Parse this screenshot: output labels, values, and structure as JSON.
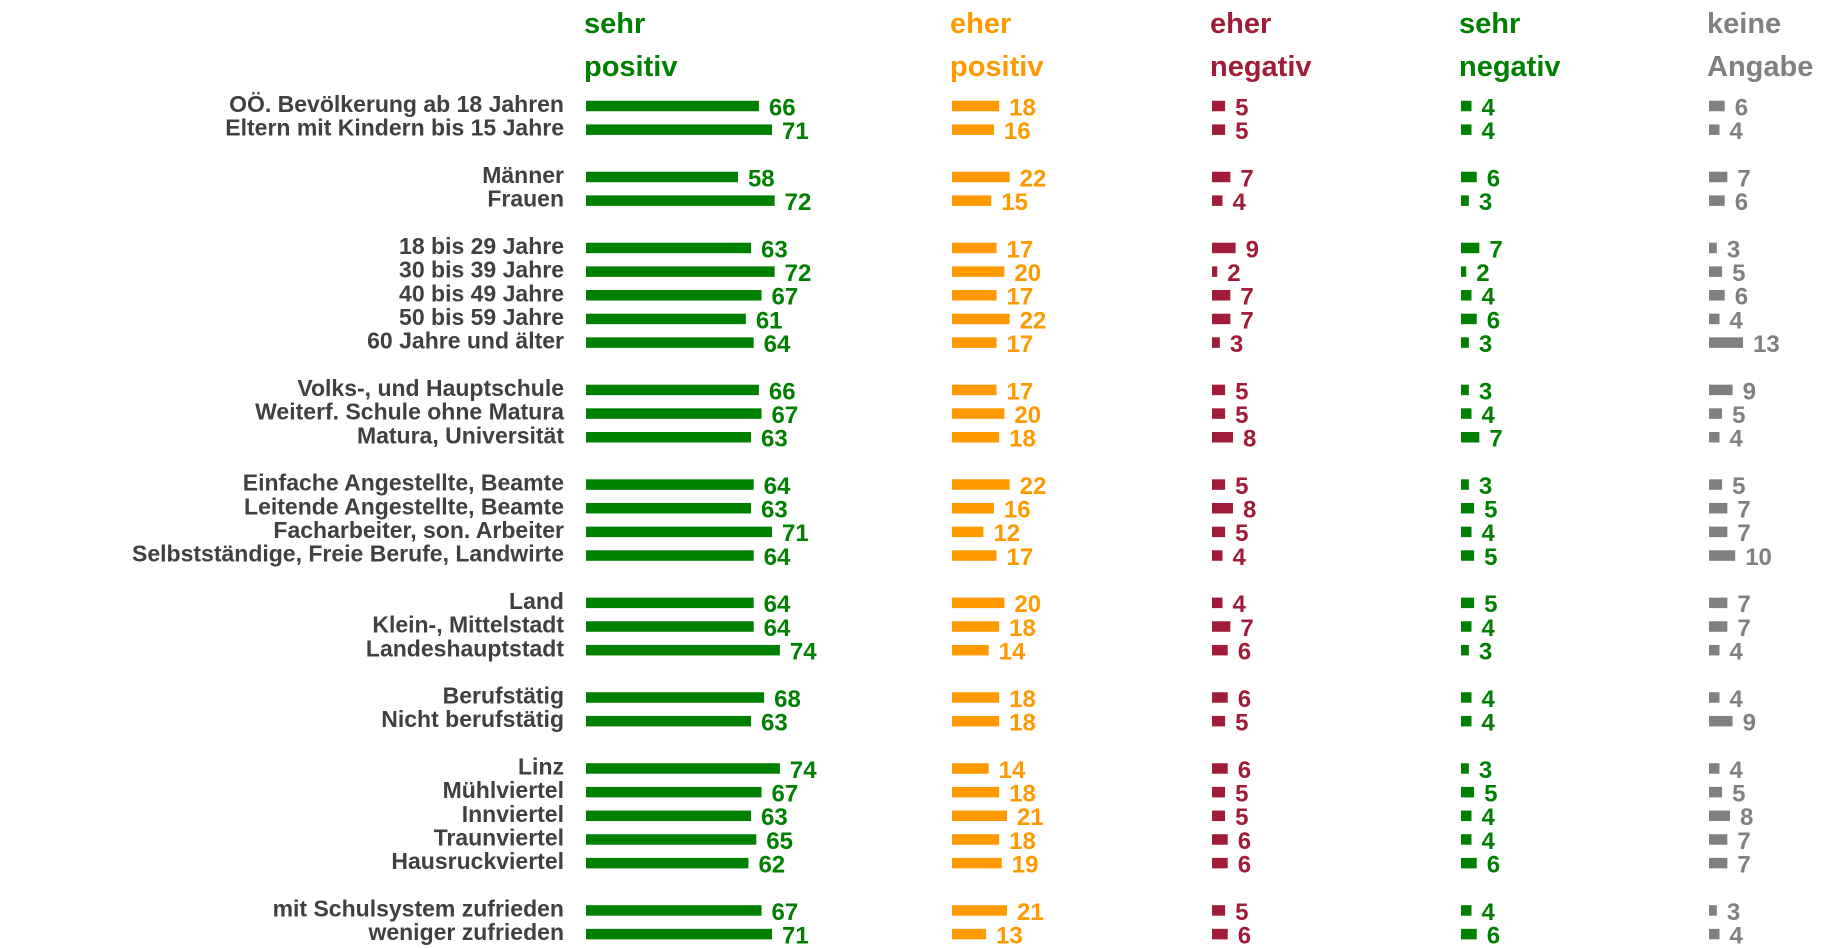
{
  "chart_data": {
    "type": "bar",
    "categories": [
      "OÖ. Bevölkerung ab 18 Jahren",
      "Eltern mit Kindern bis 15 Jahre",
      null,
      "Männer",
      "Frauen",
      null,
      "18 bis 29 Jahre",
      "30 bis 39 Jahre",
      "40 bis 49 Jahre",
      "50 bis 59 Jahre",
      "60 Jahre und älter",
      null,
      "Volks-, und Hauptschule",
      "Weiterf. Schule ohne Matura",
      "Matura, Universität",
      null,
      "Einfache Angestellte, Beamte",
      "Leitende  Angestellte, Beamte",
      "Facharbeiter, son. Arbeiter",
      "Selbstständige, Freie Berufe, Landwirte",
      null,
      "Land",
      "Klein-, Mittelstadt",
      "Landeshauptstadt",
      null,
      "Berufstätig",
      "Nicht berufstätig",
      null,
      "Linz",
      "Mühlviertel",
      "Innviertel",
      "Traunviertel",
      "Hausruckviertel",
      null,
      "mit Schulsystem zufrieden",
      "weniger zufrieden"
    ],
    "series": [
      {
        "name": "sehr positiv",
        "color": "#008000",
        "values": [
          66,
          71,
          null,
          58,
          72,
          null,
          63,
          72,
          67,
          61,
          64,
          null,
          66,
          67,
          63,
          null,
          64,
          63,
          71,
          64,
          null,
          64,
          64,
          74,
          null,
          68,
          63,
          null,
          74,
          67,
          63,
          65,
          62,
          null,
          67,
          71
        ]
      },
      {
        "name": "eher positiv",
        "color": "#ff9900",
        "values": [
          18,
          16,
          null,
          22,
          15,
          null,
          17,
          20,
          17,
          22,
          17,
          null,
          17,
          20,
          18,
          null,
          22,
          16,
          12,
          17,
          null,
          20,
          18,
          14,
          null,
          18,
          18,
          null,
          14,
          18,
          21,
          18,
          19,
          null,
          21,
          13
        ]
      },
      {
        "name": "eher negativ",
        "color": "#a01c38",
        "values": [
          5,
          5,
          null,
          7,
          4,
          null,
          9,
          2,
          7,
          7,
          3,
          null,
          5,
          5,
          8,
          null,
          5,
          8,
          5,
          4,
          null,
          4,
          7,
          6,
          null,
          6,
          5,
          null,
          6,
          5,
          5,
          6,
          6,
          null,
          5,
          6
        ]
      },
      {
        "name": "sehr negativ",
        "color": "#008000",
        "values": [
          4,
          4,
          null,
          6,
          3,
          null,
          7,
          2,
          4,
          6,
          3,
          null,
          3,
          4,
          7,
          null,
          3,
          5,
          4,
          5,
          null,
          5,
          4,
          3,
          null,
          4,
          4,
          null,
          3,
          5,
          4,
          4,
          6,
          null,
          4,
          6
        ]
      },
      {
        "name": "keine Angabe",
        "color": "#808080",
        "values": [
          6,
          4,
          null,
          7,
          6,
          null,
          3,
          5,
          6,
          4,
          13,
          null,
          9,
          5,
          4,
          null,
          5,
          7,
          7,
          10,
          null,
          7,
          7,
          4,
          null,
          4,
          9,
          null,
          4,
          5,
          8,
          7,
          7,
          null,
          3,
          4
        ]
      }
    ]
  }
}
